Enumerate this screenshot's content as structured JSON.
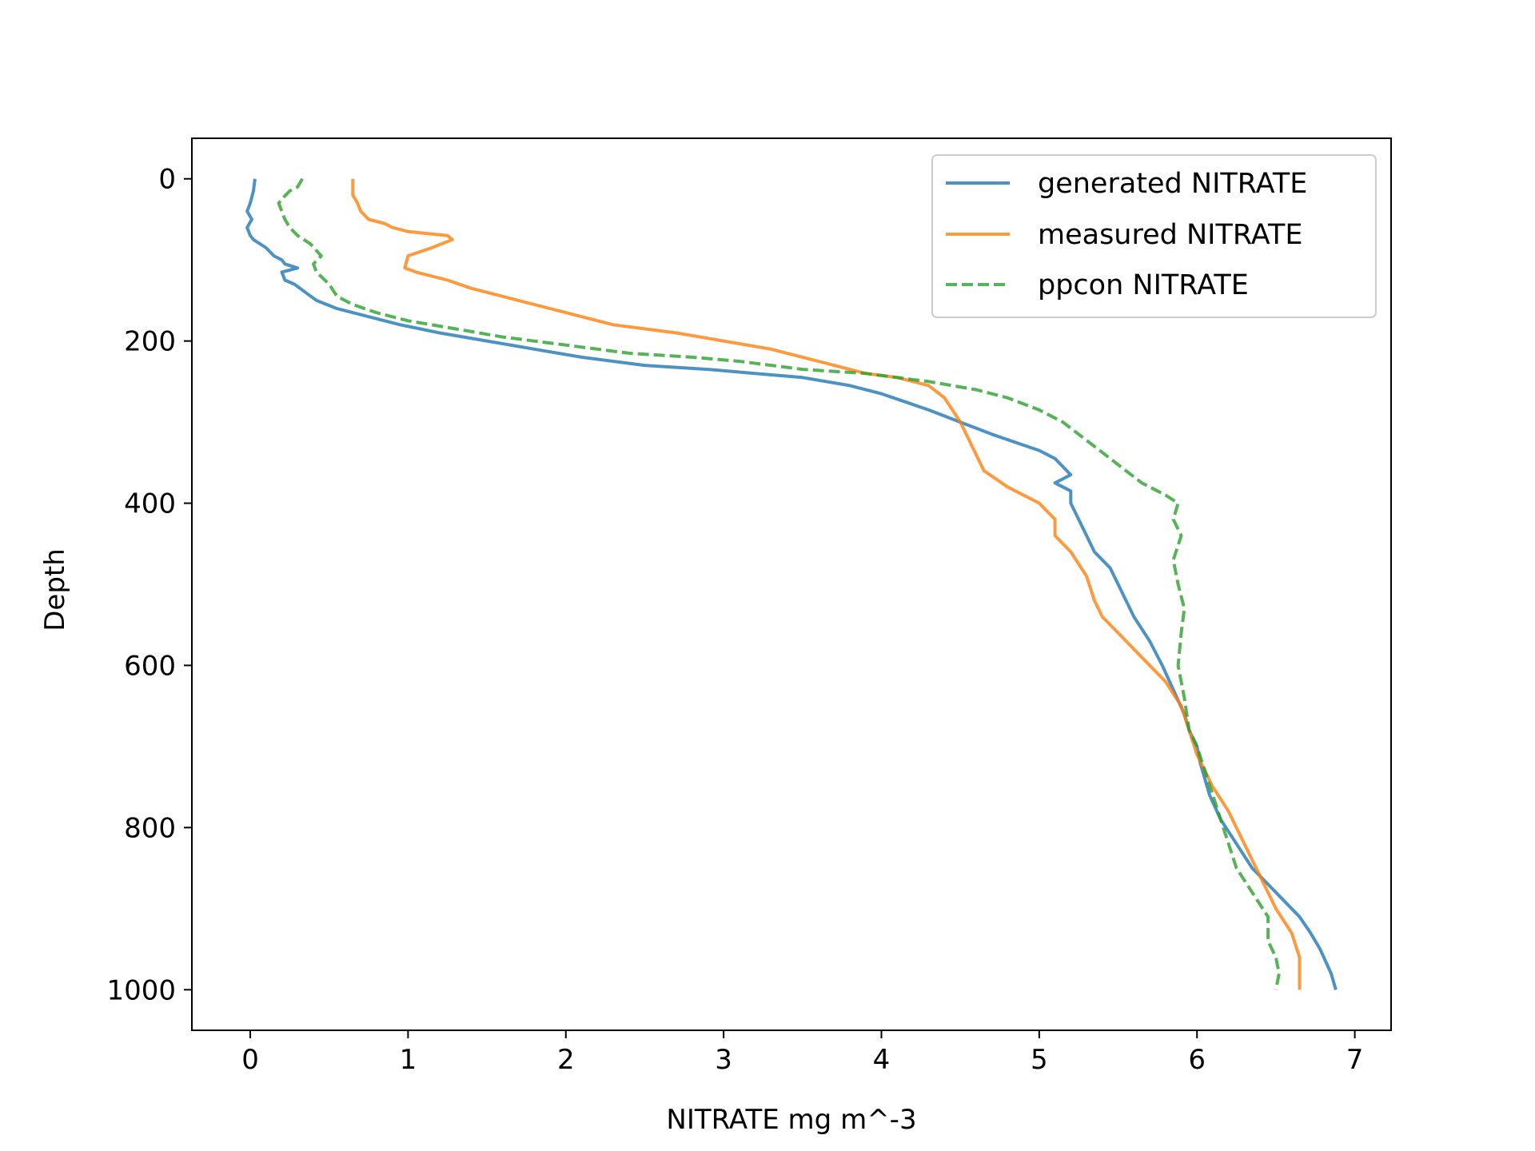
{
  "chart_data": {
    "type": "line",
    "title": "",
    "xlabel": "NITRATE mg m^-3",
    "ylabel": "Depth",
    "xlim": [
      -0.37,
      7.23
    ],
    "ylim": [
      1050,
      -50
    ],
    "y_inverted": true,
    "xticks": [
      0,
      1,
      2,
      3,
      4,
      5,
      6,
      7
    ],
    "yticks": [
      0,
      200,
      400,
      600,
      800,
      1000
    ],
    "grid": false,
    "legend_position": "top-right",
    "series": [
      {
        "name": "generated NITRATE",
        "color": "#1f77b4",
        "style": "solid",
        "x": [
          0.03,
          0.02,
          0.0,
          -0.02,
          0.01,
          -0.02,
          0.0,
          0.02,
          0.1,
          0.15,
          0.2,
          0.22,
          0.3,
          0.2,
          0.22,
          0.28,
          0.35,
          0.42,
          0.55,
          0.75,
          0.95,
          1.2,
          1.5,
          1.8,
          2.1,
          2.5,
          2.9,
          3.2,
          3.5,
          3.8,
          4.0,
          4.15,
          4.3,
          4.5,
          4.7,
          4.85,
          5.0,
          5.1,
          5.15,
          5.2,
          5.1,
          5.2,
          5.2,
          5.25,
          5.3,
          5.35,
          5.45,
          5.5,
          5.55,
          5.6,
          5.7,
          5.78,
          5.85,
          5.92,
          5.95,
          6.0,
          6.02,
          6.05,
          6.08,
          6.15,
          6.25,
          6.35,
          6.45,
          6.55,
          6.65,
          6.72,
          6.78,
          6.85,
          6.88
        ],
        "y": [
          0,
          15,
          30,
          40,
          50,
          60,
          70,
          75,
          85,
          95,
          100,
          105,
          110,
          115,
          125,
          130,
          140,
          150,
          160,
          170,
          180,
          190,
          200,
          210,
          220,
          230,
          235,
          240,
          245,
          255,
          265,
          275,
          285,
          300,
          315,
          325,
          335,
          345,
          355,
          365,
          375,
          385,
          400,
          420,
          440,
          460,
          480,
          500,
          520,
          540,
          570,
          600,
          630,
          660,
          680,
          700,
          720,
          740,
          760,
          790,
          820,
          850,
          870,
          890,
          910,
          930,
          950,
          980,
          1000
        ]
      },
      {
        "name": "measured NITRATE",
        "color": "#ff7f0e",
        "style": "solid",
        "x": [
          0.65,
          0.65,
          0.68,
          0.7,
          0.75,
          0.85,
          0.9,
          1.0,
          1.25,
          1.28,
          1.15,
          1.0,
          0.98,
          1.05,
          1.25,
          1.4,
          1.6,
          1.8,
          2.1,
          2.3,
          2.7,
          3.0,
          3.3,
          3.6,
          3.9,
          4.1,
          4.3,
          4.4,
          4.45,
          4.5,
          4.55,
          4.6,
          4.65,
          4.8,
          5.0,
          5.1,
          5.1,
          5.2,
          5.3,
          5.35,
          5.4,
          5.5,
          5.6,
          5.7,
          5.8,
          5.9,
          5.95,
          6.0,
          6.05,
          6.1,
          6.2,
          6.3,
          6.4,
          6.5,
          6.6,
          6.65,
          6.65
        ],
        "y": [
          0,
          20,
          30,
          40,
          50,
          55,
          60,
          65,
          70,
          75,
          85,
          95,
          110,
          115,
          125,
          135,
          145,
          155,
          170,
          180,
          190,
          200,
          210,
          225,
          240,
          245,
          255,
          270,
          285,
          300,
          320,
          340,
          360,
          380,
          400,
          420,
          440,
          460,
          490,
          520,
          540,
          560,
          580,
          600,
          620,
          650,
          680,
          710,
          730,
          750,
          780,
          820,
          860,
          900,
          930,
          960,
          1000
        ]
      },
      {
        "name": "ppcon NITRATE",
        "color": "#2ca02c",
        "style": "dashed",
        "x": [
          0.33,
          0.3,
          0.25,
          0.2,
          0.18,
          0.2,
          0.22,
          0.25,
          0.3,
          0.38,
          0.45,
          0.4,
          0.42,
          0.5,
          0.55,
          0.65,
          0.8,
          1.0,
          1.3,
          1.6,
          2.0,
          2.4,
          2.8,
          3.1,
          3.5,
          3.9,
          4.3,
          4.6,
          4.8,
          5.0,
          5.15,
          5.25,
          5.35,
          5.45,
          5.55,
          5.65,
          5.8,
          5.88,
          5.85,
          5.9,
          5.85,
          5.88,
          5.92,
          5.9,
          5.88,
          5.92,
          5.95,
          6.0,
          6.05,
          6.1,
          6.15,
          6.2,
          6.25,
          6.35,
          6.45,
          6.45,
          6.5,
          6.52,
          6.5
        ],
        "y": [
          0,
          10,
          15,
          25,
          30,
          40,
          50,
          60,
          70,
          80,
          95,
          105,
          115,
          130,
          145,
          155,
          165,
          175,
          185,
          195,
          205,
          215,
          220,
          225,
          235,
          240,
          250,
          260,
          270,
          285,
          300,
          315,
          330,
          345,
          360,
          375,
          390,
          400,
          420,
          440,
          470,
          500,
          530,
          560,
          600,
          640,
          680,
          700,
          730,
          760,
          790,
          820,
          850,
          880,
          910,
          940,
          960,
          980,
          1000
        ]
      }
    ]
  }
}
